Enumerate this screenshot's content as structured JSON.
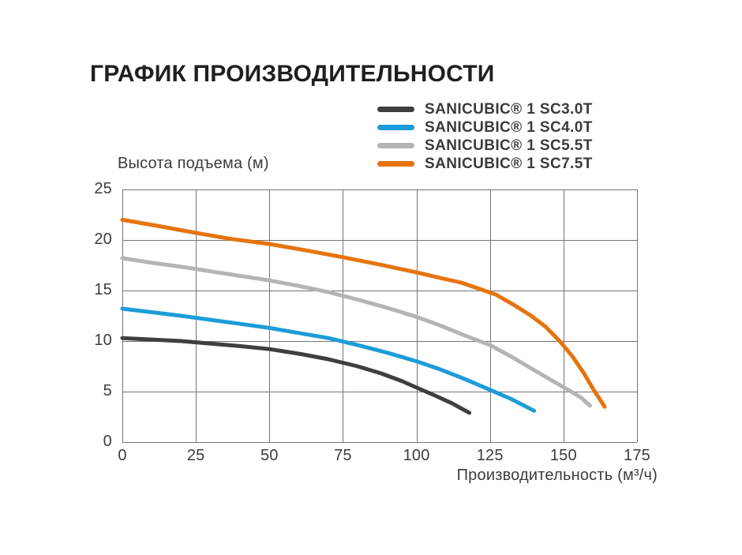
{
  "chart_data": {
    "type": "line",
    "title": "ГРАФИК ПРОИЗВОДИТЕЛЬНОСТИ",
    "xlabel": "Производительность (м³/ч)",
    "ylabel": "Высота подъема (м)",
    "xlim": [
      0,
      175
    ],
    "ylim": [
      0,
      25
    ],
    "x_ticks": [
      0,
      25,
      50,
      75,
      100,
      125,
      150,
      175
    ],
    "y_ticks": [
      0,
      5,
      10,
      15,
      20,
      25
    ],
    "grid": true,
    "grid_color": "#767676",
    "axis_text_color": "#3c3c3c",
    "title_color": "#1f1f1f",
    "legend_position": "top-right",
    "line_width": 5,
    "series": [
      {
        "key": "sc30t",
        "name": "SANICUBIC® 1 SC3.0T",
        "color": "#3f3f3f",
        "points": [
          [
            0,
            10.3
          ],
          [
            10,
            10.15
          ],
          [
            20,
            10.0
          ],
          [
            30,
            9.75
          ],
          [
            40,
            9.5
          ],
          [
            50,
            9.2
          ],
          [
            60,
            8.75
          ],
          [
            70,
            8.2
          ],
          [
            80,
            7.5
          ],
          [
            88,
            6.8
          ],
          [
            95,
            6.05
          ],
          [
            100,
            5.4
          ],
          [
            106,
            4.65
          ],
          [
            112,
            3.85
          ],
          [
            118,
            2.9
          ]
        ]
      },
      {
        "key": "sc40t",
        "name": "SANICUBIC® 1 SC4.0T",
        "color": "#1d9cd9",
        "points": [
          [
            0,
            13.2
          ],
          [
            10,
            12.85
          ],
          [
            20,
            12.5
          ],
          [
            30,
            12.1
          ],
          [
            40,
            11.7
          ],
          [
            50,
            11.3
          ],
          [
            60,
            10.8
          ],
          [
            70,
            10.3
          ],
          [
            80,
            9.6
          ],
          [
            90,
            8.85
          ],
          [
            100,
            8.0
          ],
          [
            108,
            7.2
          ],
          [
            116,
            6.3
          ],
          [
            124,
            5.3
          ],
          [
            132,
            4.3
          ],
          [
            140,
            3.1
          ]
        ]
      },
      {
        "key": "sc55t",
        "name": "SANICUBIC® 1 SC5.5T",
        "color": "#b4b4b4",
        "points": [
          [
            0,
            18.2
          ],
          [
            10,
            17.75
          ],
          [
            20,
            17.35
          ],
          [
            30,
            16.9
          ],
          [
            40,
            16.45
          ],
          [
            50,
            16.0
          ],
          [
            60,
            15.45
          ],
          [
            70,
            14.85
          ],
          [
            80,
            14.1
          ],
          [
            90,
            13.3
          ],
          [
            100,
            12.4
          ],
          [
            108,
            11.55
          ],
          [
            116,
            10.6
          ],
          [
            125,
            9.6
          ],
          [
            132,
            8.5
          ],
          [
            139,
            7.3
          ],
          [
            146,
            6.1
          ],
          [
            152,
            5.1
          ],
          [
            156,
            4.4
          ],
          [
            159,
            3.6
          ]
        ]
      },
      {
        "key": "sc75t",
        "name": "SANICUBIC® 1 SC7.5T",
        "color": "#e6740e",
        "points": [
          [
            0,
            22.0
          ],
          [
            12,
            21.4
          ],
          [
            25,
            20.7
          ],
          [
            37,
            20.1
          ],
          [
            50,
            19.6
          ],
          [
            62,
            19.0
          ],
          [
            75,
            18.3
          ],
          [
            87,
            17.6
          ],
          [
            100,
            16.8
          ],
          [
            108,
            16.25
          ],
          [
            115,
            15.8
          ],
          [
            121,
            15.2
          ],
          [
            127,
            14.6
          ],
          [
            133,
            13.6
          ],
          [
            139,
            12.5
          ],
          [
            144,
            11.4
          ],
          [
            149,
            9.9
          ],
          [
            153,
            8.5
          ],
          [
            157,
            6.8
          ],
          [
            160,
            5.3
          ],
          [
            162,
            4.4
          ],
          [
            164,
            3.5
          ]
        ]
      }
    ]
  }
}
